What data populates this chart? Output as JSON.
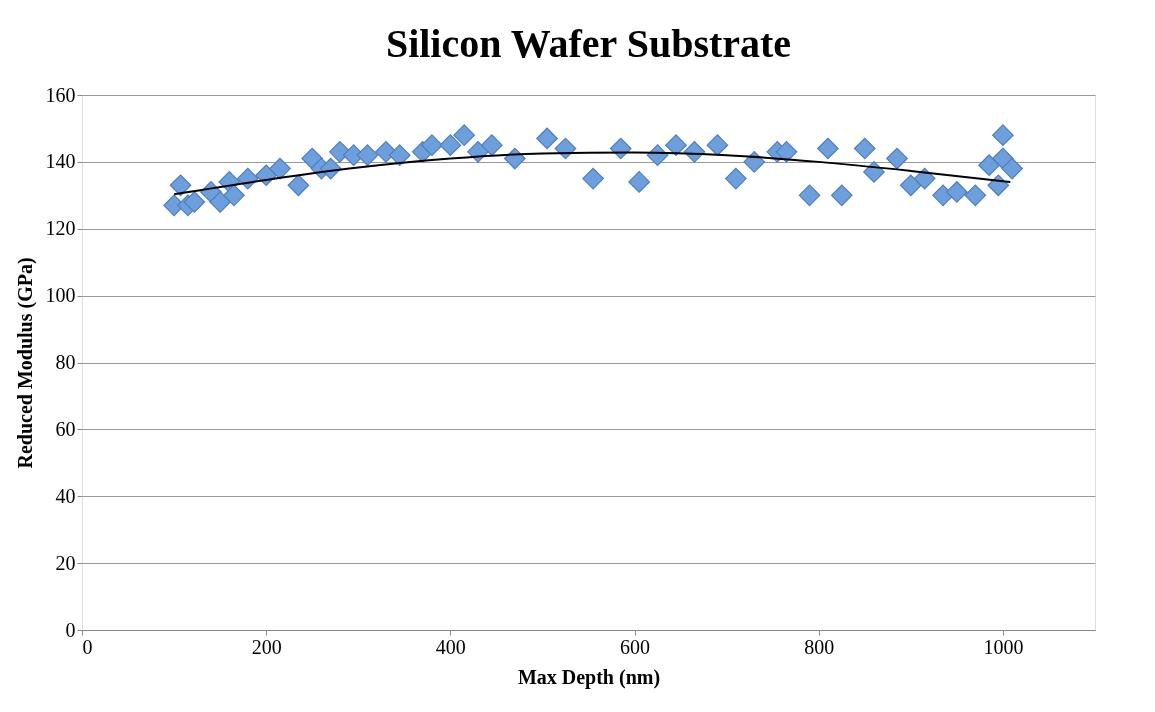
{
  "chart_data": {
    "type": "scatter",
    "title": "Silicon Wafer Substrate",
    "xlabel": "Max Depth (nm)",
    "ylabel": "Reduced Modulus (GPa)",
    "xlim": [
      0,
      1100
    ],
    "xticks": [
      0,
      200,
      400,
      600,
      800,
      1000
    ],
    "ylim": [
      0,
      160
    ],
    "yticks": [
      0,
      20,
      40,
      60,
      80,
      100,
      120,
      140,
      160
    ],
    "grid": "y",
    "series": [
      {
        "marker": "diamond",
        "color": "#6c9fdc",
        "x": [
          100,
          107,
          115,
          122,
          140,
          150,
          160,
          165,
          180,
          200,
          215,
          235,
          250,
          260,
          270,
          280,
          295,
          310,
          330,
          345,
          370,
          380,
          400,
          415,
          430,
          445,
          470,
          505,
          525,
          555,
          585,
          605,
          625,
          645,
          665,
          690,
          710,
          730,
          755,
          765,
          790,
          810,
          825,
          850,
          860,
          885,
          900,
          915,
          935,
          950,
          970,
          985,
          995,
          1000,
          1000,
          1010
        ],
        "values": [
          127,
          133,
          127,
          128,
          131,
          128,
          134,
          130,
          135,
          136,
          138,
          133,
          141,
          138,
          138,
          143,
          142,
          142,
          143,
          142,
          143,
          145,
          145,
          148,
          143,
          145,
          141,
          147,
          144,
          135,
          144,
          134,
          142,
          145,
          143,
          145,
          135,
          140,
          143,
          143,
          130,
          144,
          130,
          144,
          137,
          141,
          133,
          135,
          130,
          131,
          130,
          139,
          133,
          148,
          141,
          138
        ]
      },
      {
        "type": "line",
        "color": "#000000",
        "x": [
          100,
          200,
          300,
          400,
          500,
          600,
          700,
          800,
          900,
          1008
        ],
        "values": [
          130.3,
          134.6,
          138.3,
          141,
          142.5,
          142.8,
          142,
          140,
          137.3,
          134
        ]
      }
    ]
  }
}
